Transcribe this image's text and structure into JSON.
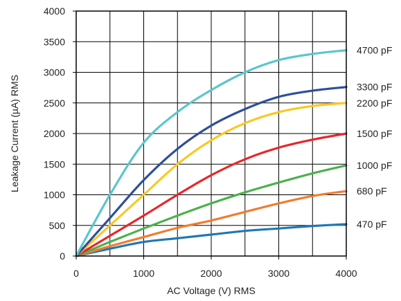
{
  "chart_data": {
    "type": "line",
    "xlabel": "AC Voltage (V) RMS",
    "ylabel": "Leakage Current (µA) RMS",
    "xlim": [
      0,
      4000
    ],
    "ylim": [
      0,
      4000
    ],
    "xticks": [
      0,
      1000,
      2000,
      3000,
      4000
    ],
    "yticks": [
      0,
      500,
      1000,
      1500,
      2000,
      2500,
      3000,
      3500,
      4000
    ],
    "grid": true,
    "legend": "series labels at right end of each line",
    "x": [
      0,
      500,
      1000,
      1500,
      2000,
      2500,
      3000,
      3500,
      4000
    ],
    "series": [
      {
        "name": "470 pF",
        "color": "#1f77b4",
        "values": [
          0,
          120,
          230,
          290,
          350,
          410,
          450,
          490,
          520
        ]
      },
      {
        "name": "680 pF",
        "color": "#f07c30",
        "values": [
          0,
          160,
          310,
          460,
          580,
          720,
          860,
          980,
          1060
        ]
      },
      {
        "name": "1000 pF",
        "color": "#4cb04c",
        "values": [
          0,
          230,
          450,
          660,
          860,
          1040,
          1200,
          1350,
          1480
        ]
      },
      {
        "name": "1500 pF",
        "color": "#e8262a",
        "values": [
          0,
          330,
          660,
          1000,
          1320,
          1580,
          1770,
          1900,
          2000
        ]
      },
      {
        "name": "2200 pF",
        "color": "#f9c823",
        "values": [
          0,
          500,
          1000,
          1500,
          1890,
          2170,
          2350,
          2450,
          2500
        ]
      },
      {
        "name": "3300 pF",
        "color": "#2e4f99",
        "values": [
          0,
          620,
          1240,
          1750,
          2130,
          2400,
          2600,
          2700,
          2760
        ]
      },
      {
        "name": "4700 pF",
        "color": "#5bc6cc",
        "values": [
          0,
          1000,
          1850,
          2350,
          2710,
          3000,
          3200,
          3300,
          3360
        ]
      }
    ]
  }
}
